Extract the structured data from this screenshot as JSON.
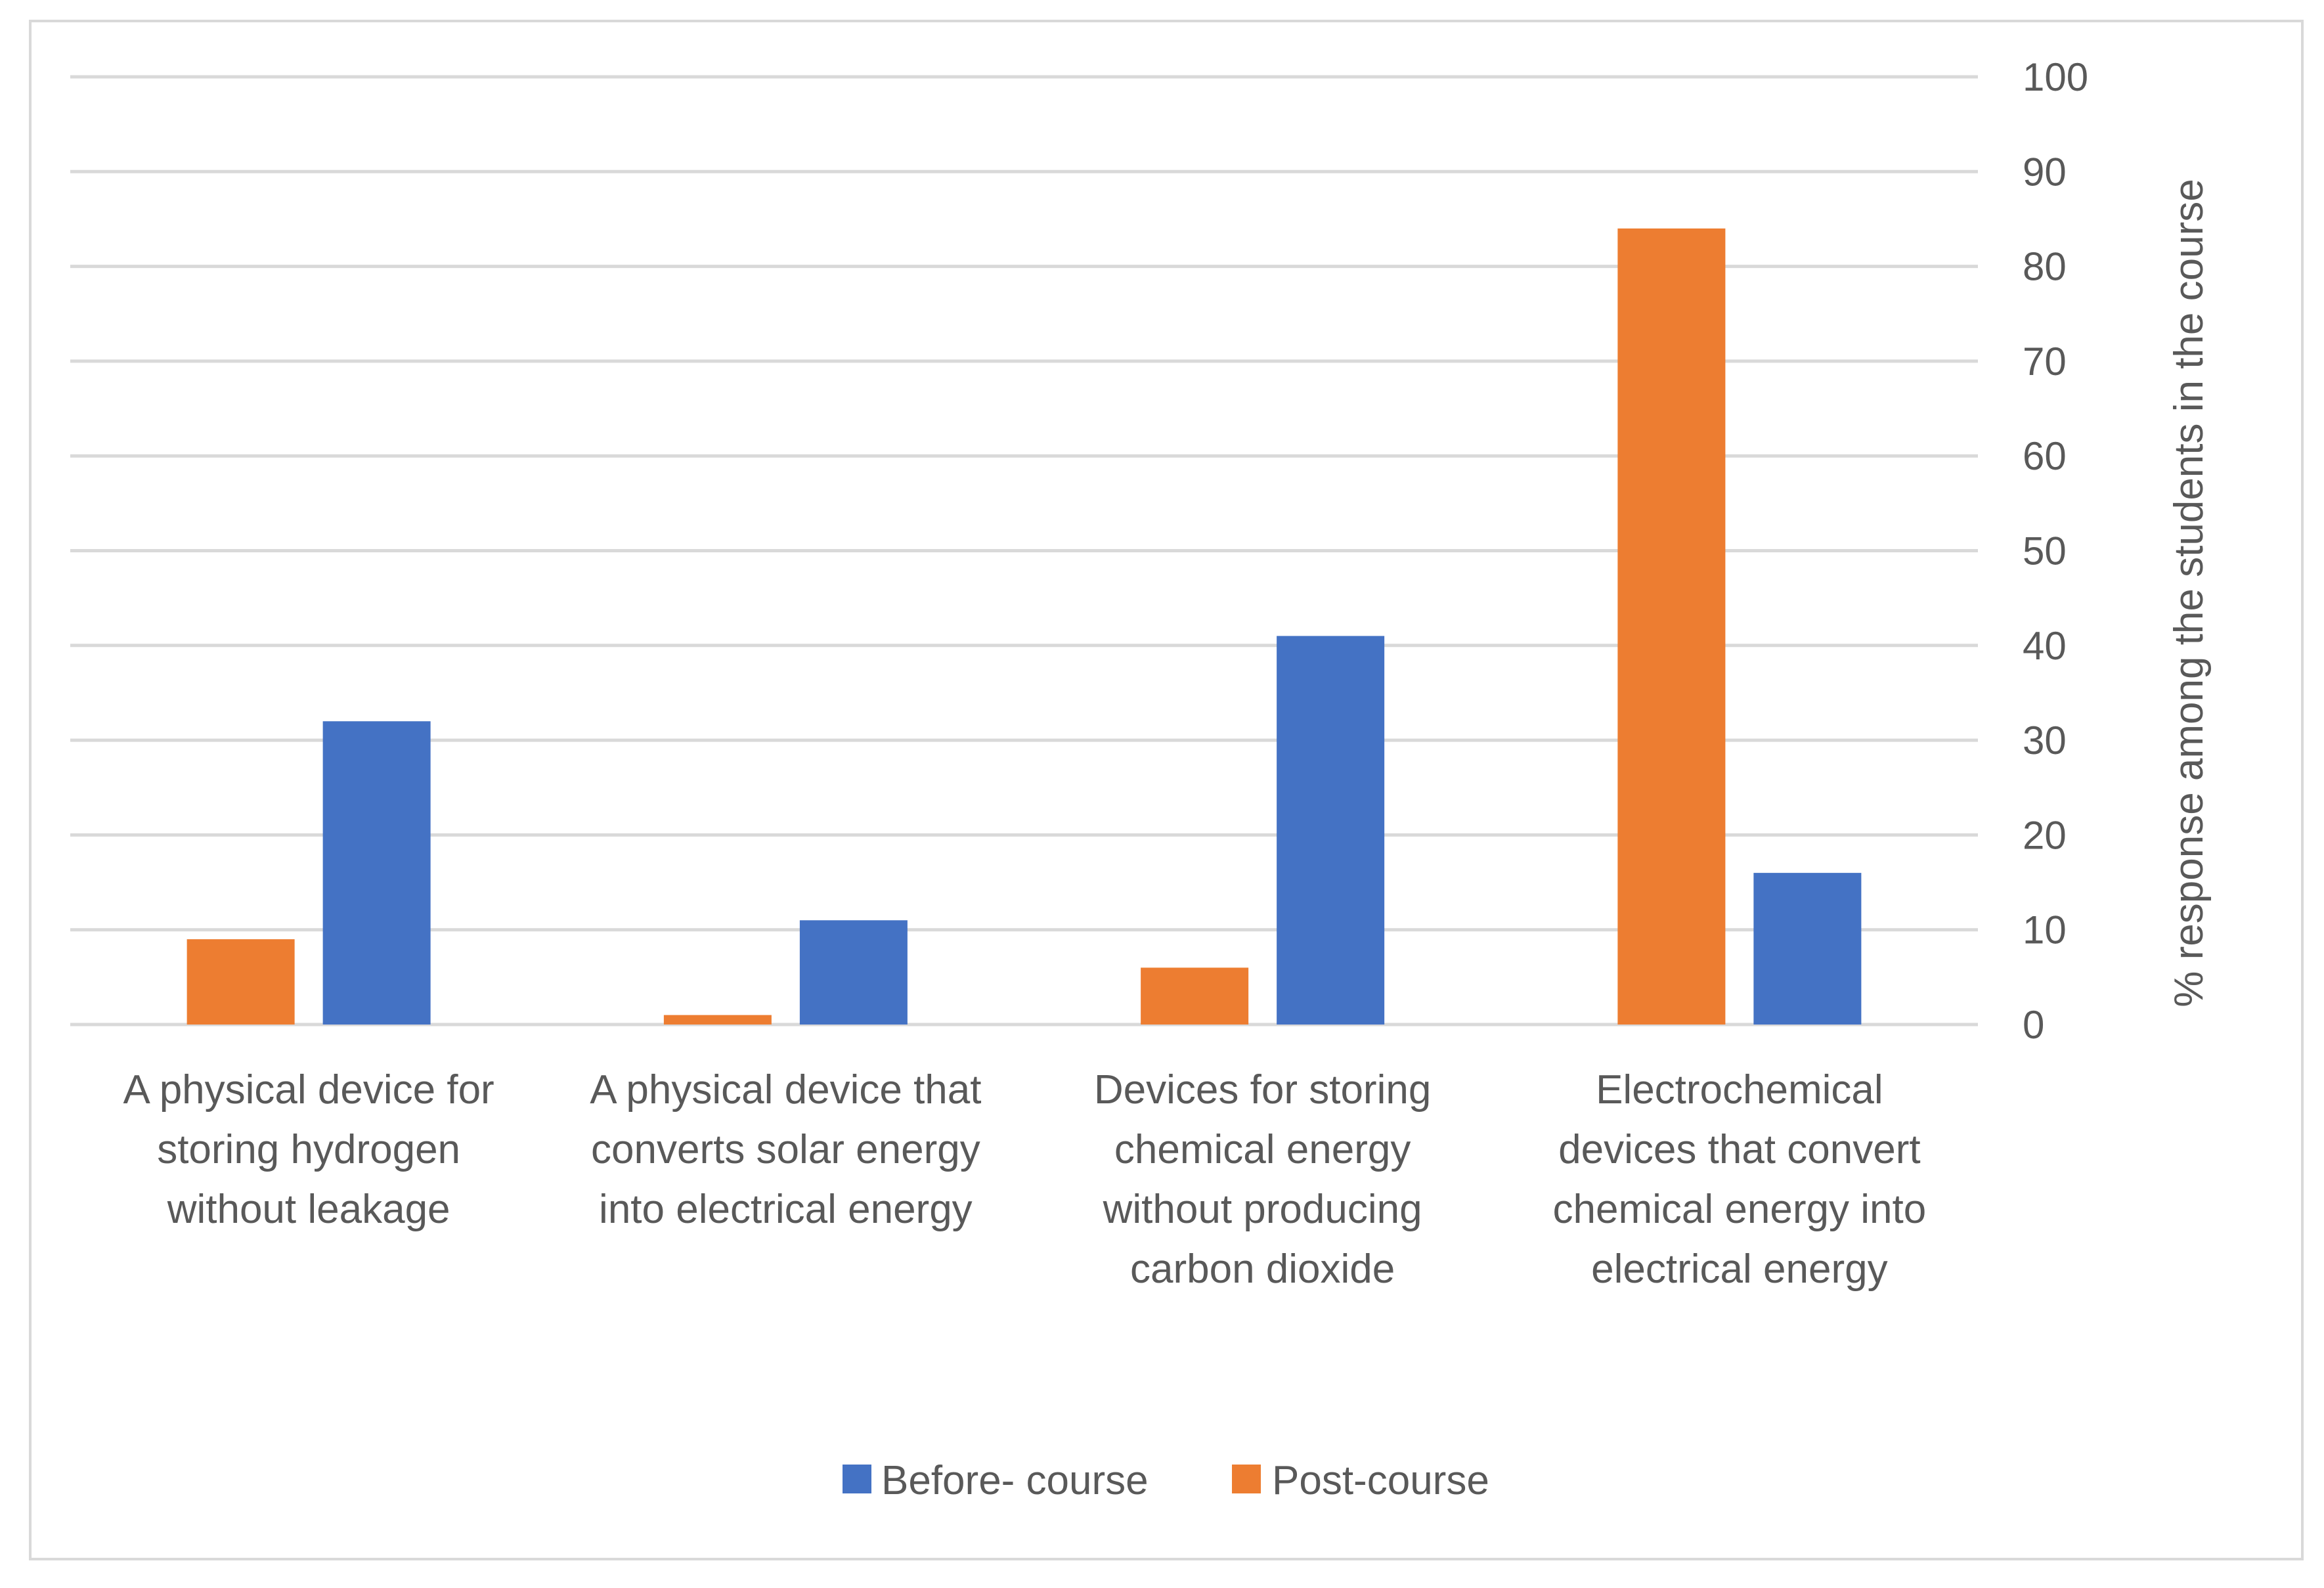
{
  "chart_data": {
    "type": "bar",
    "categories": [
      [
        "A physical device for",
        "storing hydrogen",
        "without leakage"
      ],
      [
        "A physical device that",
        "converts solar energy",
        "into electrical energy"
      ],
      [
        "Devices for storing",
        "chemical energy",
        "without producing",
        "carbon dioxide"
      ],
      [
        "Electrochemical",
        "devices that convert",
        "chemical energy into",
        "electrical energy"
      ]
    ],
    "series": [
      {
        "name": "Post-course",
        "color": "#ed7d31",
        "values": [
          9,
          1,
          6,
          84
        ]
      },
      {
        "name": "Before- course",
        "color": "#4472c4",
        "values": [
          32,
          11,
          41,
          16
        ]
      }
    ],
    "legend_order": [
      "Before- course",
      "Post-course"
    ],
    "ylabel": "% response among the students in the course",
    "ylim": [
      0,
      100
    ],
    "yticks": [
      "0",
      "10",
      "20",
      "30",
      "40",
      "50",
      "60",
      "70",
      "80",
      "90",
      "100"
    ],
    "y_axis_side": "right",
    "legend_position": "bottom",
    "grid": true
  }
}
